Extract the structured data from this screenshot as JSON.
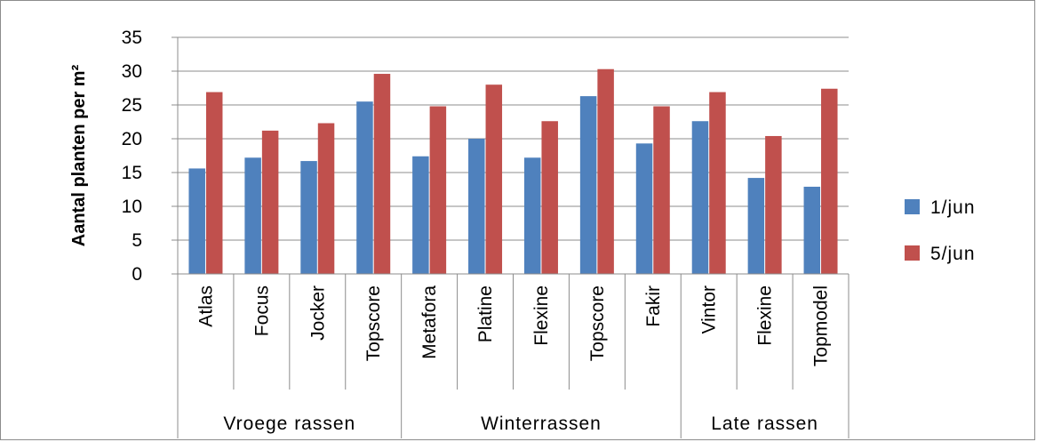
{
  "chart_data": {
    "type": "bar",
    "ylabel": "Aantal planten per m²",
    "ylim": [
      0,
      35
    ],
    "yticks": [
      0,
      5,
      10,
      15,
      20,
      25,
      30,
      35
    ],
    "grid": "horizontal",
    "legend_position": "right",
    "categories": [
      "Atlas",
      "Focus",
      "Jocker",
      "Topscore",
      "Metafora",
      "Platine",
      "Flexine",
      "Topscore",
      "Fakir",
      "Vintor",
      "Flexine",
      "Topmodel"
    ],
    "groups": [
      {
        "label": "Vroege rassen",
        "count": 4
      },
      {
        "label": "Winterrassen",
        "count": 5
      },
      {
        "label": "Late rassen",
        "count": 3
      }
    ],
    "series": [
      {
        "name": "1/jun",
        "color": "#4f81bd",
        "values": [
          15.6,
          17.2,
          16.7,
          25.5,
          17.4,
          20.0,
          17.2,
          26.3,
          19.3,
          22.6,
          14.2,
          12.9
        ]
      },
      {
        "name": "5/jun",
        "color": "#c0504d",
        "values": [
          26.9,
          21.2,
          22.3,
          29.6,
          24.8,
          28.0,
          22.6,
          30.3,
          24.8,
          26.9,
          20.4,
          27.4
        ]
      }
    ]
  }
}
